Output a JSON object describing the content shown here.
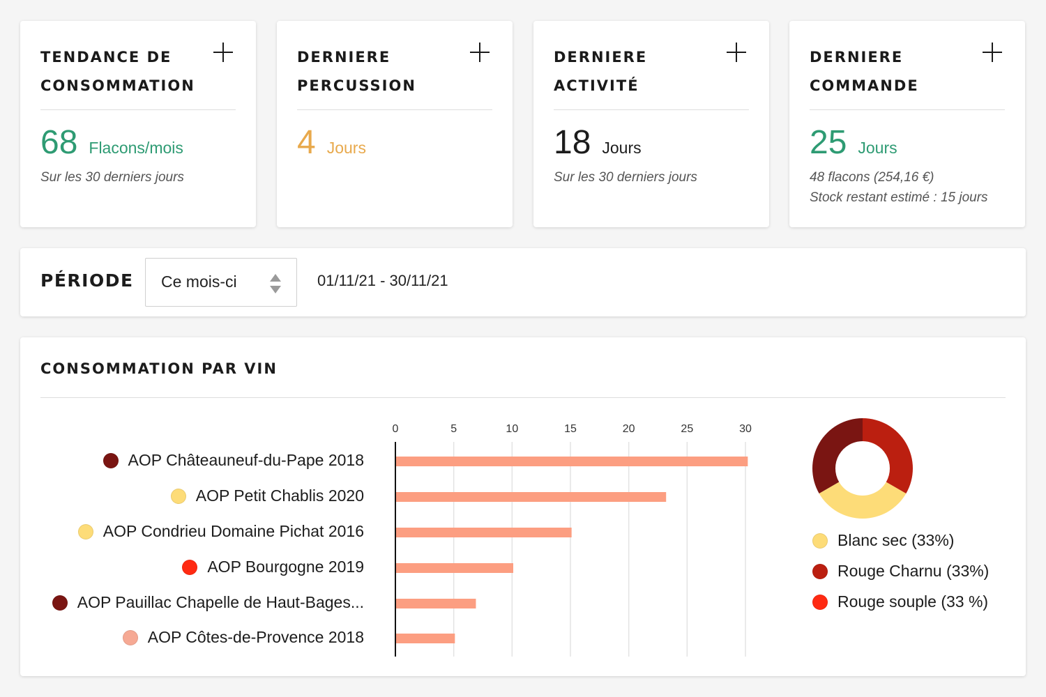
{
  "stats": [
    {
      "title_line1": "TENDANCE DE",
      "title_line2": "CONSOMMATION",
      "value": "68",
      "unit": "Flacons/mois",
      "sub1": "Sur les 30 derniers jours",
      "sub2": "",
      "color": "#2e9b73"
    },
    {
      "title_line1": "DERNIERE",
      "title_line2": "PERCUSSION",
      "value": "4",
      "unit": "Jours",
      "sub1": "",
      "sub2": "",
      "color": "#e8a94c"
    },
    {
      "title_line1": "DERNIERE",
      "title_line2": "ACTIVITÉ",
      "value": "18",
      "unit": "Jours",
      "sub1": "Sur les 30 derniers jours",
      "sub2": "",
      "color": "#1c1c1c"
    },
    {
      "title_line1": "DERNIERE",
      "title_line2": "COMMANDE",
      "value": "25",
      "unit": "Jours",
      "sub1": "48 flacons (254,16 €)",
      "sub2": "Stock restant estimé : 15 jours",
      "color": "#2e9b73"
    }
  ],
  "periode": {
    "label": "PÉRIODE",
    "selected": "Ce mois-ci",
    "date_range": "01/11/21 - 30/11/21"
  },
  "consommation": {
    "title": "CONSOMMATION PAR VIN"
  },
  "chart_data": [
    {
      "type": "bar",
      "orientation": "horizontal",
      "categories": [
        "AOP Châteauneuf-du-Pape 2018",
        "AOP Petit Chablis 2020",
        "AOP Condrieu Domaine Pichat 2016",
        "AOP Bourgogne 2019",
        "AOP Pauillac Chapelle de Haut-Bages...",
        "AOP Côtes-de-Provence 2018"
      ],
      "category_colors": [
        "#7a1512",
        "#fddc78",
        "#fddc78",
        "#ff2a12",
        "#7a1512",
        "#f6a994"
      ],
      "values": [
        30.2,
        23.2,
        15.1,
        10.1,
        6.9,
        5.1
      ],
      "xlim": [
        0,
        30
      ],
      "ticks": [
        "0",
        "5",
        "10",
        "15",
        "20",
        "25",
        "30"
      ],
      "bar_color": "#fc9e81",
      "grid": true
    },
    {
      "type": "pie",
      "donut": true,
      "labels": [
        "Blanc sec (33%)",
        "Rouge Charnu (33%)",
        "Rouge souple (33 %)"
      ],
      "values": [
        33.3,
        33.3,
        33.3
      ],
      "colors": [
        "#fddc78",
        "#bb1f10",
        "#7a1512"
      ],
      "legend_colors": [
        "#fddc78",
        "#bb1f10",
        "#ff2a12"
      ]
    }
  ]
}
